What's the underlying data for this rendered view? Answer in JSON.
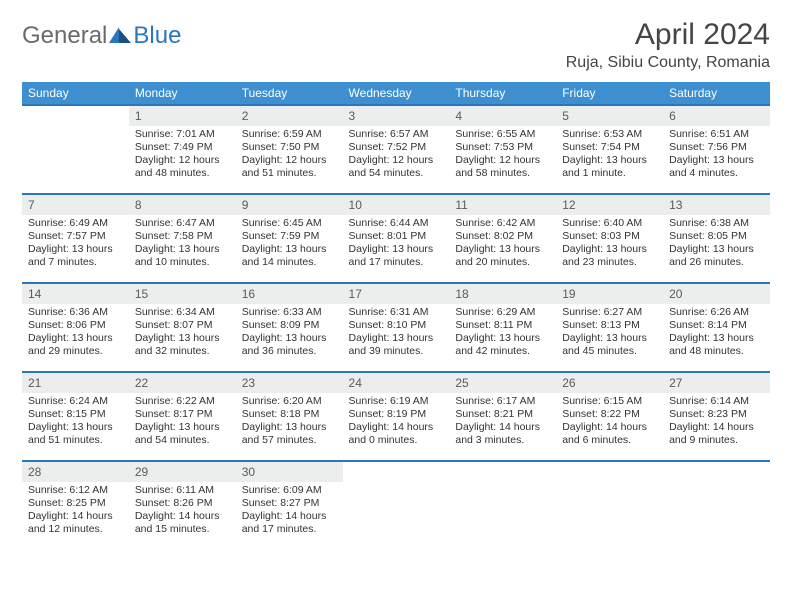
{
  "logo": {
    "part1": "General",
    "part2": "Blue"
  },
  "title": {
    "month": "April 2024",
    "location": "Ruja, Sibiu County, Romania"
  },
  "colors": {
    "header_bg": "#3d8fcf",
    "header_text": "#ffffff",
    "daynum_bg": "#eceded",
    "daynum_text": "#5a5a5a",
    "border": "#2b77bd",
    "body_text": "#333333",
    "logo_gray": "#6a6a6a",
    "logo_blue": "#2b77bd"
  },
  "weekdays": [
    "Sunday",
    "Monday",
    "Tuesday",
    "Wednesday",
    "Thursday",
    "Friday",
    "Saturday"
  ],
  "weeks": [
    {
      "nums": [
        "",
        "1",
        "2",
        "3",
        "4",
        "5",
        "6"
      ],
      "cells": [
        {
          "sunrise": "",
          "sunset": "",
          "daylight1": "",
          "daylight2": ""
        },
        {
          "sunrise": "Sunrise: 7:01 AM",
          "sunset": "Sunset: 7:49 PM",
          "daylight1": "Daylight: 12 hours",
          "daylight2": "and 48 minutes."
        },
        {
          "sunrise": "Sunrise: 6:59 AM",
          "sunset": "Sunset: 7:50 PM",
          "daylight1": "Daylight: 12 hours",
          "daylight2": "and 51 minutes."
        },
        {
          "sunrise": "Sunrise: 6:57 AM",
          "sunset": "Sunset: 7:52 PM",
          "daylight1": "Daylight: 12 hours",
          "daylight2": "and 54 minutes."
        },
        {
          "sunrise": "Sunrise: 6:55 AM",
          "sunset": "Sunset: 7:53 PM",
          "daylight1": "Daylight: 12 hours",
          "daylight2": "and 58 minutes."
        },
        {
          "sunrise": "Sunrise: 6:53 AM",
          "sunset": "Sunset: 7:54 PM",
          "daylight1": "Daylight: 13 hours",
          "daylight2": "and 1 minute."
        },
        {
          "sunrise": "Sunrise: 6:51 AM",
          "sunset": "Sunset: 7:56 PM",
          "daylight1": "Daylight: 13 hours",
          "daylight2": "and 4 minutes."
        }
      ]
    },
    {
      "nums": [
        "7",
        "8",
        "9",
        "10",
        "11",
        "12",
        "13"
      ],
      "cells": [
        {
          "sunrise": "Sunrise: 6:49 AM",
          "sunset": "Sunset: 7:57 PM",
          "daylight1": "Daylight: 13 hours",
          "daylight2": "and 7 minutes."
        },
        {
          "sunrise": "Sunrise: 6:47 AM",
          "sunset": "Sunset: 7:58 PM",
          "daylight1": "Daylight: 13 hours",
          "daylight2": "and 10 minutes."
        },
        {
          "sunrise": "Sunrise: 6:45 AM",
          "sunset": "Sunset: 7:59 PM",
          "daylight1": "Daylight: 13 hours",
          "daylight2": "and 14 minutes."
        },
        {
          "sunrise": "Sunrise: 6:44 AM",
          "sunset": "Sunset: 8:01 PM",
          "daylight1": "Daylight: 13 hours",
          "daylight2": "and 17 minutes."
        },
        {
          "sunrise": "Sunrise: 6:42 AM",
          "sunset": "Sunset: 8:02 PM",
          "daylight1": "Daylight: 13 hours",
          "daylight2": "and 20 minutes."
        },
        {
          "sunrise": "Sunrise: 6:40 AM",
          "sunset": "Sunset: 8:03 PM",
          "daylight1": "Daylight: 13 hours",
          "daylight2": "and 23 minutes."
        },
        {
          "sunrise": "Sunrise: 6:38 AM",
          "sunset": "Sunset: 8:05 PM",
          "daylight1": "Daylight: 13 hours",
          "daylight2": "and 26 minutes."
        }
      ]
    },
    {
      "nums": [
        "14",
        "15",
        "16",
        "17",
        "18",
        "19",
        "20"
      ],
      "cells": [
        {
          "sunrise": "Sunrise: 6:36 AM",
          "sunset": "Sunset: 8:06 PM",
          "daylight1": "Daylight: 13 hours",
          "daylight2": "and 29 minutes."
        },
        {
          "sunrise": "Sunrise: 6:34 AM",
          "sunset": "Sunset: 8:07 PM",
          "daylight1": "Daylight: 13 hours",
          "daylight2": "and 32 minutes."
        },
        {
          "sunrise": "Sunrise: 6:33 AM",
          "sunset": "Sunset: 8:09 PM",
          "daylight1": "Daylight: 13 hours",
          "daylight2": "and 36 minutes."
        },
        {
          "sunrise": "Sunrise: 6:31 AM",
          "sunset": "Sunset: 8:10 PM",
          "daylight1": "Daylight: 13 hours",
          "daylight2": "and 39 minutes."
        },
        {
          "sunrise": "Sunrise: 6:29 AM",
          "sunset": "Sunset: 8:11 PM",
          "daylight1": "Daylight: 13 hours",
          "daylight2": "and 42 minutes."
        },
        {
          "sunrise": "Sunrise: 6:27 AM",
          "sunset": "Sunset: 8:13 PM",
          "daylight1": "Daylight: 13 hours",
          "daylight2": "and 45 minutes."
        },
        {
          "sunrise": "Sunrise: 6:26 AM",
          "sunset": "Sunset: 8:14 PM",
          "daylight1": "Daylight: 13 hours",
          "daylight2": "and 48 minutes."
        }
      ]
    },
    {
      "nums": [
        "21",
        "22",
        "23",
        "24",
        "25",
        "26",
        "27"
      ],
      "cells": [
        {
          "sunrise": "Sunrise: 6:24 AM",
          "sunset": "Sunset: 8:15 PM",
          "daylight1": "Daylight: 13 hours",
          "daylight2": "and 51 minutes."
        },
        {
          "sunrise": "Sunrise: 6:22 AM",
          "sunset": "Sunset: 8:17 PM",
          "daylight1": "Daylight: 13 hours",
          "daylight2": "and 54 minutes."
        },
        {
          "sunrise": "Sunrise: 6:20 AM",
          "sunset": "Sunset: 8:18 PM",
          "daylight1": "Daylight: 13 hours",
          "daylight2": "and 57 minutes."
        },
        {
          "sunrise": "Sunrise: 6:19 AM",
          "sunset": "Sunset: 8:19 PM",
          "daylight1": "Daylight: 14 hours",
          "daylight2": "and 0 minutes."
        },
        {
          "sunrise": "Sunrise: 6:17 AM",
          "sunset": "Sunset: 8:21 PM",
          "daylight1": "Daylight: 14 hours",
          "daylight2": "and 3 minutes."
        },
        {
          "sunrise": "Sunrise: 6:15 AM",
          "sunset": "Sunset: 8:22 PM",
          "daylight1": "Daylight: 14 hours",
          "daylight2": "and 6 minutes."
        },
        {
          "sunrise": "Sunrise: 6:14 AM",
          "sunset": "Sunset: 8:23 PM",
          "daylight1": "Daylight: 14 hours",
          "daylight2": "and 9 minutes."
        }
      ]
    },
    {
      "nums": [
        "28",
        "29",
        "30",
        "",
        "",
        "",
        ""
      ],
      "cells": [
        {
          "sunrise": "Sunrise: 6:12 AM",
          "sunset": "Sunset: 8:25 PM",
          "daylight1": "Daylight: 14 hours",
          "daylight2": "and 12 minutes."
        },
        {
          "sunrise": "Sunrise: 6:11 AM",
          "sunset": "Sunset: 8:26 PM",
          "daylight1": "Daylight: 14 hours",
          "daylight2": "and 15 minutes."
        },
        {
          "sunrise": "Sunrise: 6:09 AM",
          "sunset": "Sunset: 8:27 PM",
          "daylight1": "Daylight: 14 hours",
          "daylight2": "and 17 minutes."
        },
        {
          "sunrise": "",
          "sunset": "",
          "daylight1": "",
          "daylight2": ""
        },
        {
          "sunrise": "",
          "sunset": "",
          "daylight1": "",
          "daylight2": ""
        },
        {
          "sunrise": "",
          "sunset": "",
          "daylight1": "",
          "daylight2": ""
        },
        {
          "sunrise": "",
          "sunset": "",
          "daylight1": "",
          "daylight2": ""
        }
      ]
    }
  ]
}
